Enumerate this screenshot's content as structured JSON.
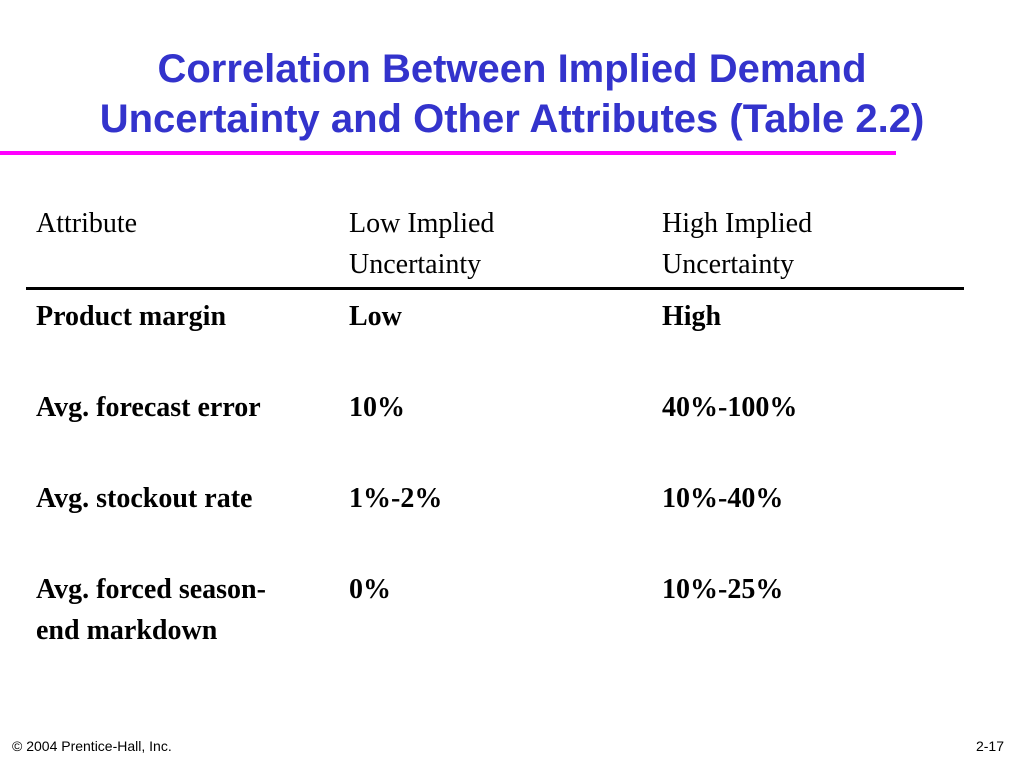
{
  "slide": {
    "title_line1": "Correlation Between Implied Demand",
    "title_line2": "Uncertainty and Other Attributes (Table 2.2)"
  },
  "table": {
    "headers": [
      {
        "line1": "Attribute",
        "line2": ""
      },
      {
        "line1": "Low Implied",
        "line2": "Uncertainty"
      },
      {
        "line1": "High Implied",
        "line2": "Uncertainty"
      }
    ],
    "rows": [
      {
        "attribute": "Product margin",
        "attribute_line2": "",
        "low": "Low",
        "high": "High"
      },
      {
        "attribute": "Avg. forecast error",
        "attribute_line2": "",
        "low": "10%",
        "high": "40%-100%"
      },
      {
        "attribute": "Avg. stockout rate",
        "attribute_line2": "",
        "low": "1%-2%",
        "high": "10%-40%"
      },
      {
        "attribute": "Avg. forced season-",
        "attribute_line2": "end markdown",
        "low": "0%",
        "high": "10%-25%"
      }
    ]
  },
  "footer": {
    "copyright": "© 2004 Prentice-Hall, Inc.",
    "page_number": "2-17"
  },
  "colors": {
    "title": "#3333cc",
    "title_rule": "#ff00ff",
    "text": "#000000"
  }
}
